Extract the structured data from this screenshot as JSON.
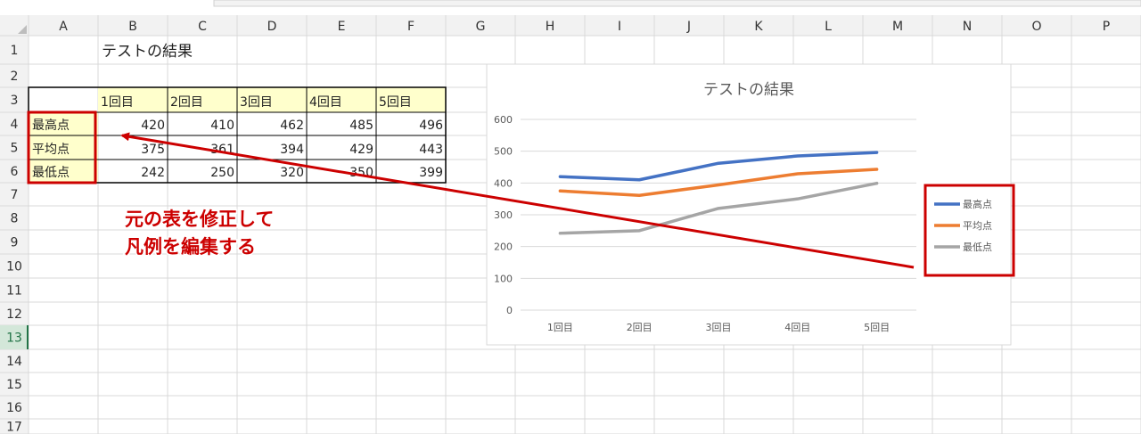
{
  "columns": [
    "A",
    "B",
    "C",
    "D",
    "E",
    "F",
    "G",
    "H",
    "I",
    "J",
    "K",
    "L",
    "M",
    "N",
    "O",
    "P"
  ],
  "rows": [
    "1",
    "2",
    "3",
    "4",
    "5",
    "6",
    "7",
    "8",
    "9",
    "10",
    "11",
    "12",
    "13",
    "14",
    "15",
    "16",
    "17"
  ],
  "active_row": "13",
  "sheet_title": "テストの結果",
  "table": {
    "headers": [
      "1回目",
      "2回目",
      "3回目",
      "4回目",
      "5回目"
    ],
    "row_labels": [
      "最高点",
      "平均点",
      "最低点"
    ],
    "cells": [
      [
        "420",
        "410",
        "462",
        "485",
        "496"
      ],
      [
        "375",
        "361",
        "394",
        "429",
        "443"
      ],
      [
        "242",
        "250",
        "320",
        "350",
        "399"
      ]
    ]
  },
  "annotation": {
    "line1": "元の表を修正して",
    "line2": "凡例を編集する",
    "color": "#cc0000"
  },
  "colors": {
    "header_fill": "#ffffcc",
    "grid": "#d9d9d9",
    "active_row_header": "#217346"
  },
  "chart_data": {
    "type": "line",
    "title": "テストの結果",
    "categories": [
      "1回目",
      "2回目",
      "3回目",
      "4回目",
      "5回目"
    ],
    "ylim": [
      0,
      600
    ],
    "yticks": [
      "0",
      "100",
      "200",
      "300",
      "400",
      "500",
      "600"
    ],
    "grid": true,
    "legend_position": "right",
    "series": [
      {
        "name": "最高点",
        "color": "#4472c4",
        "values": [
          420,
          410,
          462,
          485,
          496
        ]
      },
      {
        "name": "平均点",
        "color": "#ed7d31",
        "values": [
          375,
          361,
          394,
          429,
          443
        ]
      },
      {
        "name": "最低点",
        "color": "#a5a5a5",
        "values": [
          242,
          250,
          320,
          350,
          399
        ]
      }
    ]
  }
}
